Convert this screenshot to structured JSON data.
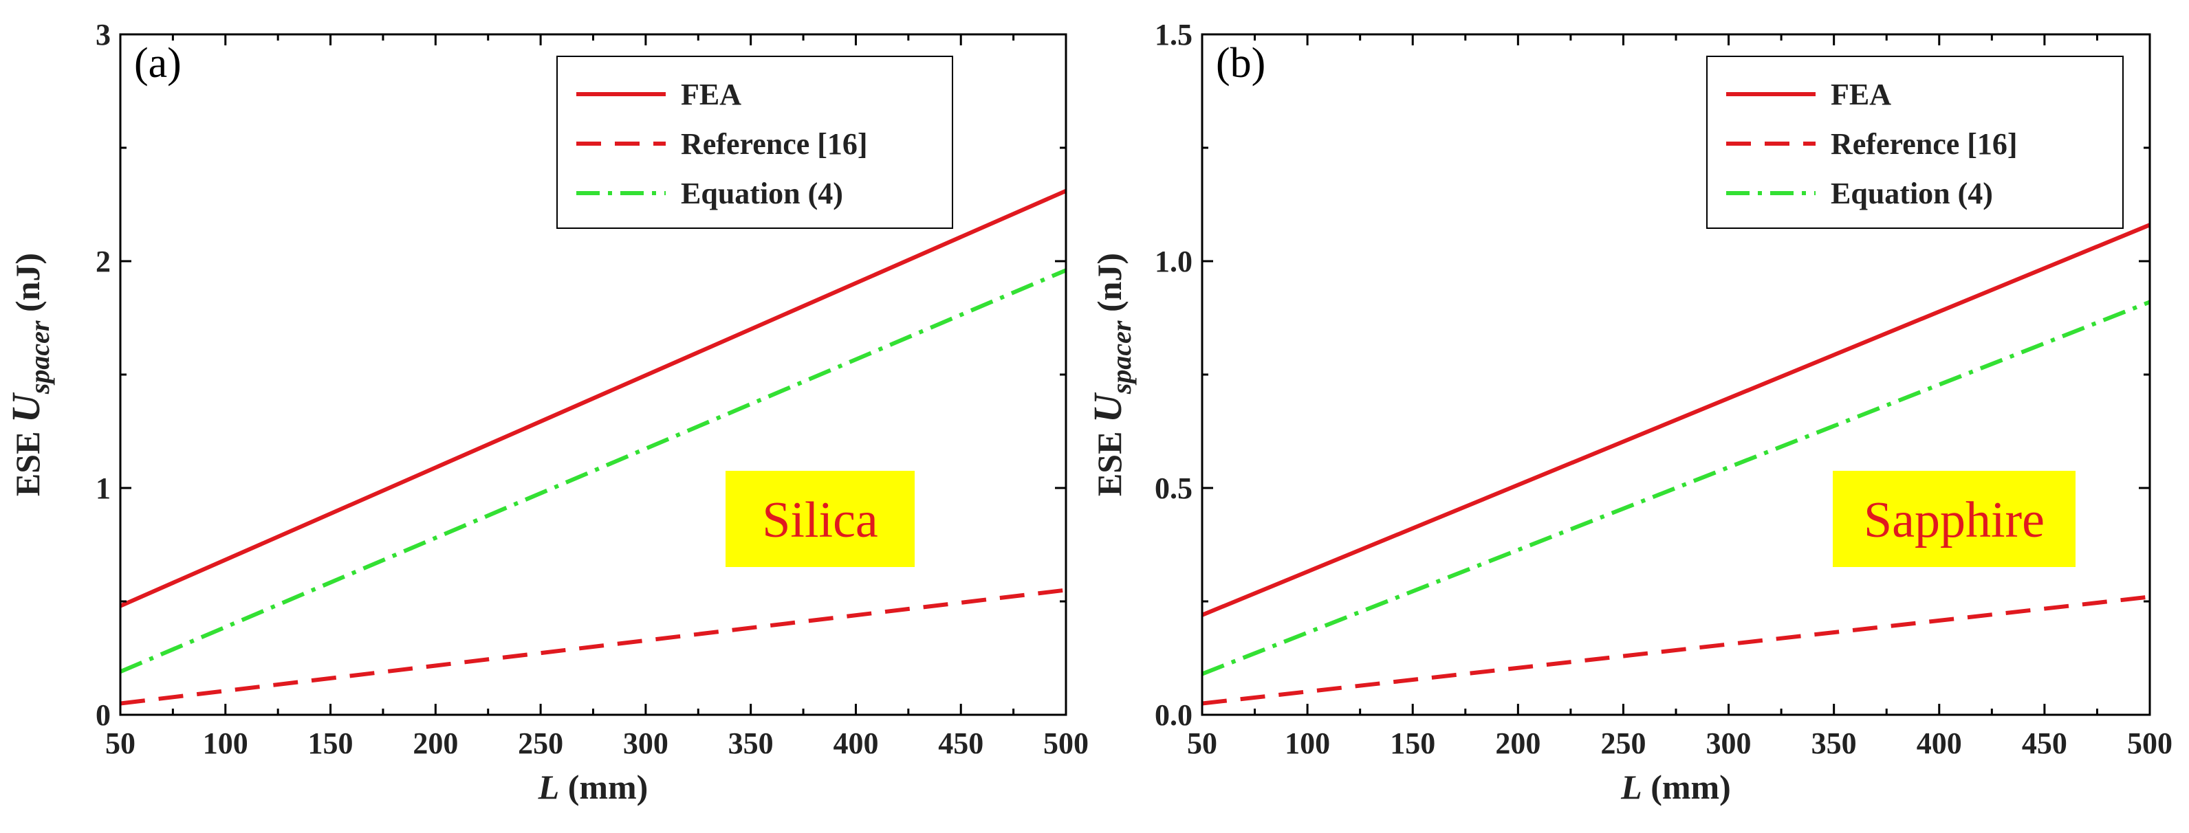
{
  "chart_data": [
    {
      "type": "line",
      "panel_label": "(a)",
      "material": "Silica",
      "ylabel": {
        "prefix": "ESE ",
        "symbol": "U",
        "subscript": "spacer",
        "unit": " (nJ)"
      },
      "xlabel": {
        "symbol": "L",
        "unit": " (mm)"
      },
      "xlim": [
        50,
        500
      ],
      "ylim": [
        0,
        3
      ],
      "xticks": [
        50,
        100,
        150,
        200,
        250,
        300,
        350,
        400,
        450,
        500
      ],
      "yticks": [
        0,
        1,
        2,
        3
      ],
      "yticklabels": [
        "0",
        "1",
        "2",
        "3"
      ],
      "legend_position": "top-right",
      "series": [
        {
          "name": "FEA",
          "style": "solid",
          "color": "#e0191f",
          "x": [
            50,
            500
          ],
          "values": [
            0.48,
            2.31
          ]
        },
        {
          "name": "Reference [16]",
          "style": "dashed",
          "color": "#e0191f",
          "x": [
            50,
            500
          ],
          "values": [
            0.05,
            0.55
          ]
        },
        {
          "name": "Equation (4)",
          "style": "dashdot",
          "color": "#33e033",
          "x": [
            50,
            500
          ],
          "values": [
            0.19,
            1.96
          ]
        }
      ]
    },
    {
      "type": "line",
      "panel_label": "(b)",
      "material": "Sapphire",
      "ylabel": {
        "prefix": "ESE ",
        "symbol": "U",
        "subscript": "spacer",
        "unit": " (nJ)"
      },
      "xlabel": {
        "symbol": "L",
        "unit": " (mm)"
      },
      "xlim": [
        50,
        500
      ],
      "ylim": [
        0,
        1.5
      ],
      "xticks": [
        50,
        100,
        150,
        200,
        250,
        300,
        350,
        400,
        450,
        500
      ],
      "yticks": [
        0,
        0.5,
        1.0,
        1.5
      ],
      "yticklabels": [
        "0.0",
        "0.5",
        "1.0",
        "1.5"
      ],
      "legend_position": "top-right",
      "series": [
        {
          "name": "FEA",
          "style": "solid",
          "color": "#e0191f",
          "x": [
            50,
            500
          ],
          "values": [
            0.22,
            1.08
          ]
        },
        {
          "name": "Reference [16]",
          "style": "dashed",
          "color": "#e0191f",
          "x": [
            50,
            500
          ],
          "values": [
            0.025,
            0.26
          ]
        },
        {
          "name": "Equation (4)",
          "style": "dashdot",
          "color": "#33e033",
          "x": [
            50,
            500
          ],
          "values": [
            0.09,
            0.91
          ]
        }
      ]
    }
  ],
  "colors": {
    "tag_background": "#ffff00",
    "tag_text": "#e0191f"
  }
}
